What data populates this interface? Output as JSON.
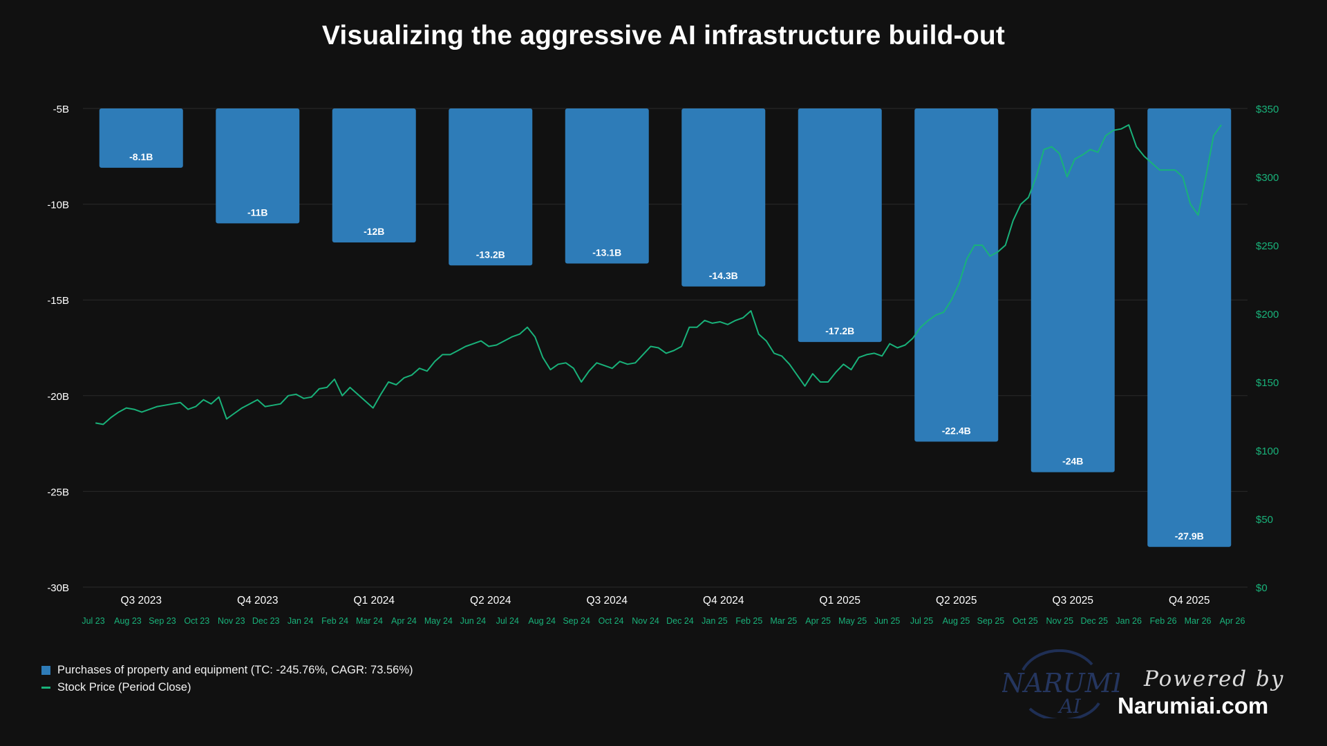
{
  "title": "Visualizing the aggressive AI infrastructure build-out",
  "legend": {
    "bar_label": "Purchases of property and equipment (TC: -245.76%, CAGR: 73.56%)",
    "line_label": "Stock Price (Period Close)"
  },
  "branding": {
    "logo_word": "NARUMI",
    "logo_sub": "AI",
    "powered_by": "Powered by",
    "site": "Narumiai.com"
  },
  "colors": {
    "background": "#111111",
    "bar": "#2e7cb8",
    "line": "#19b27a",
    "grid": "#2a2a2a",
    "axis_left_text": "#ffffff",
    "axis_right_text": "#19b27a"
  },
  "chart_data": {
    "type": "bar",
    "title": "Visualizing the aggressive AI infrastructure build-out",
    "categories": [
      "Q3 2023",
      "Q4 2023",
      "Q1 2024",
      "Q2 2024",
      "Q3 2024",
      "Q4 2024",
      "Q1 2025",
      "Q2 2025",
      "Q3 2025",
      "Q4 2025"
    ],
    "series": [
      {
        "name": "Purchases of property and equipment (TC: -245.76%, CAGR: 73.56%)",
        "type": "bar",
        "axis": "left",
        "values": [
          -8.1,
          -11,
          -12,
          -13.2,
          -13.1,
          -14.3,
          -17.2,
          -22.4,
          -24,
          -27.9
        ],
        "labels": [
          "-8.1B",
          "-11B",
          "-12B",
          "-13.2B",
          "-13.1B",
          "-14.3B",
          "-17.2B",
          "-22.4B",
          "-24B",
          "-27.9B"
        ]
      },
      {
        "name": "Stock Price (Period Close)",
        "type": "line",
        "axis": "right",
        "points": [
          [
            "2023-07-03",
            120
          ],
          [
            "2023-07-10",
            119
          ],
          [
            "2023-07-17",
            124
          ],
          [
            "2023-07-24",
            128
          ],
          [
            "2023-07-31",
            131
          ],
          [
            "2023-08-07",
            130
          ],
          [
            "2023-08-14",
            128
          ],
          [
            "2023-08-21",
            130
          ],
          [
            "2023-08-28",
            132
          ],
          [
            "2023-09-04",
            133
          ],
          [
            "2023-09-11",
            134
          ],
          [
            "2023-09-18",
            135
          ],
          [
            "2023-09-25",
            130
          ],
          [
            "2023-10-02",
            132
          ],
          [
            "2023-10-09",
            137
          ],
          [
            "2023-10-16",
            134
          ],
          [
            "2023-10-23",
            139
          ],
          [
            "2023-10-30",
            123
          ],
          [
            "2023-11-06",
            127
          ],
          [
            "2023-11-13",
            131
          ],
          [
            "2023-11-20",
            134
          ],
          [
            "2023-11-27",
            137
          ],
          [
            "2023-12-04",
            132
          ],
          [
            "2023-12-11",
            133
          ],
          [
            "2023-12-18",
            134
          ],
          [
            "2023-12-25",
            140
          ],
          [
            "2024-01-01",
            141
          ],
          [
            "2024-01-08",
            138
          ],
          [
            "2024-01-15",
            139
          ],
          [
            "2024-01-22",
            145
          ],
          [
            "2024-01-29",
            146
          ],
          [
            "2024-02-05",
            152
          ],
          [
            "2024-02-12",
            140
          ],
          [
            "2024-02-19",
            146
          ],
          [
            "2024-02-26",
            141
          ],
          [
            "2024-03-04",
            136
          ],
          [
            "2024-03-11",
            131
          ],
          [
            "2024-03-18",
            141
          ],
          [
            "2024-03-25",
            150
          ],
          [
            "2024-04-01",
            148
          ],
          [
            "2024-04-08",
            153
          ],
          [
            "2024-04-15",
            155
          ],
          [
            "2024-04-22",
            160
          ],
          [
            "2024-04-29",
            158
          ],
          [
            "2024-05-06",
            165
          ],
          [
            "2024-05-13",
            170
          ],
          [
            "2024-05-20",
            170
          ],
          [
            "2024-05-27",
            173
          ],
          [
            "2024-06-03",
            176
          ],
          [
            "2024-06-10",
            178
          ],
          [
            "2024-06-17",
            180
          ],
          [
            "2024-06-24",
            176
          ],
          [
            "2024-07-01",
            177
          ],
          [
            "2024-07-08",
            180
          ],
          [
            "2024-07-15",
            183
          ],
          [
            "2024-07-22",
            185
          ],
          [
            "2024-07-29",
            190
          ],
          [
            "2024-08-05",
            183
          ],
          [
            "2024-08-12",
            168
          ],
          [
            "2024-08-19",
            159
          ],
          [
            "2024-08-26",
            163
          ],
          [
            "2024-09-02",
            164
          ],
          [
            "2024-09-09",
            160
          ],
          [
            "2024-09-16",
            150
          ],
          [
            "2024-09-23",
            158
          ],
          [
            "2024-09-30",
            164
          ],
          [
            "2024-10-07",
            162
          ],
          [
            "2024-10-14",
            160
          ],
          [
            "2024-10-21",
            165
          ],
          [
            "2024-10-28",
            163
          ],
          [
            "2024-11-04",
            164
          ],
          [
            "2024-11-11",
            170
          ],
          [
            "2024-11-18",
            176
          ],
          [
            "2024-11-25",
            175
          ],
          [
            "2024-12-02",
            171
          ],
          [
            "2024-12-09",
            173
          ],
          [
            "2024-12-16",
            176
          ],
          [
            "2024-12-23",
            190
          ],
          [
            "2024-12-30",
            190
          ],
          [
            "2025-01-06",
            195
          ],
          [
            "2025-01-13",
            193
          ],
          [
            "2025-01-20",
            194
          ],
          [
            "2025-01-27",
            192
          ],
          [
            "2025-02-03",
            195
          ],
          [
            "2025-02-10",
            197
          ],
          [
            "2025-02-17",
            202
          ],
          [
            "2025-02-24",
            185
          ],
          [
            "2025-03-03",
            180
          ],
          [
            "2025-03-10",
            171
          ],
          [
            "2025-03-17",
            169
          ],
          [
            "2025-03-24",
            163
          ],
          [
            "2025-03-31",
            155
          ],
          [
            "2025-04-07",
            147
          ],
          [
            "2025-04-14",
            156
          ],
          [
            "2025-04-21",
            150
          ],
          [
            "2025-04-28",
            150
          ],
          [
            "2025-05-05",
            157
          ],
          [
            "2025-05-12",
            163
          ],
          [
            "2025-05-19",
            159
          ],
          [
            "2025-05-26",
            168
          ],
          [
            "2025-06-02",
            170
          ],
          [
            "2025-06-09",
            171
          ],
          [
            "2025-06-16",
            169
          ],
          [
            "2025-06-23",
            178
          ],
          [
            "2025-06-30",
            175
          ],
          [
            "2025-07-07",
            177
          ],
          [
            "2025-07-14",
            182
          ],
          [
            "2025-07-21",
            190
          ],
          [
            "2025-07-28",
            195
          ],
          [
            "2025-08-04",
            199
          ],
          [
            "2025-08-11",
            201
          ],
          [
            "2025-08-18",
            210
          ],
          [
            "2025-08-25",
            222
          ],
          [
            "2025-09-01",
            240
          ],
          [
            "2025-09-08",
            250
          ],
          [
            "2025-09-15",
            250
          ],
          [
            "2025-09-22",
            242
          ],
          [
            "2025-09-29",
            245
          ],
          [
            "2025-10-06",
            250
          ],
          [
            "2025-10-13",
            268
          ],
          [
            "2025-10-20",
            280
          ],
          [
            "2025-10-27",
            285
          ],
          [
            "2025-11-03",
            300
          ],
          [
            "2025-11-10",
            320
          ],
          [
            "2025-11-17",
            322
          ],
          [
            "2025-11-24",
            317
          ],
          [
            "2025-12-01",
            300
          ],
          [
            "2025-12-08",
            313
          ],
          [
            "2025-12-15",
            316
          ],
          [
            "2025-12-22",
            320
          ],
          [
            "2025-12-29",
            318
          ],
          [
            "2026-01-05",
            330
          ],
          [
            "2026-01-12",
            334
          ],
          [
            "2026-01-19",
            335
          ],
          [
            "2026-01-26",
            338
          ],
          [
            "2026-02-02",
            322
          ],
          [
            "2026-02-09",
            315
          ],
          [
            "2026-02-16",
            310
          ],
          [
            "2026-02-23",
            305
          ],
          [
            "2026-03-02",
            305
          ],
          [
            "2026-03-09",
            305
          ],
          [
            "2026-03-16",
            300
          ],
          [
            "2026-03-23",
            280
          ],
          [
            "2026-03-30",
            272
          ],
          [
            "2026-04-06",
            300
          ],
          [
            "2026-04-13",
            330
          ],
          [
            "2026-04-20",
            338
          ]
        ]
      }
    ],
    "y_left": {
      "ylim": [
        -30,
        -5
      ],
      "ticks": [
        -5,
        -10,
        -15,
        -20,
        -25,
        -30
      ],
      "tick_labels": [
        "-5B",
        "-10B",
        "-15B",
        "-20B",
        "-25B",
        "-30B"
      ]
    },
    "y_right": {
      "ylim": [
        0,
        350
      ],
      "ticks": [
        0,
        50,
        100,
        150,
        200,
        250,
        300,
        350
      ],
      "tick_labels": [
        "$0",
        "$50",
        "$100",
        "$150",
        "$200",
        "$250",
        "$300",
        "$350"
      ]
    },
    "x_months": {
      "range": [
        "2023-07-01",
        "2026-04-30"
      ],
      "tick_labels": [
        "Jul 23",
        "Aug 23",
        "Sep 23",
        "Oct 23",
        "Nov 23",
        "Dec 23",
        "Jan 24",
        "Feb 24",
        "Mar 24",
        "Apr 24",
        "May 24",
        "Jun 24",
        "Jul 24",
        "Aug 24",
        "Sep 24",
        "Oct 24",
        "Nov 24",
        "Dec 24",
        "Jan 25",
        "Feb 25",
        "Mar 25",
        "Apr 25",
        "May 25",
        "Jun 25",
        "Jul 25",
        "Aug 25",
        "Sep 25",
        "Oct 25",
        "Nov 25",
        "Dec 25",
        "Jan 26",
        "Feb 26",
        "Mar 26",
        "Apr 26"
      ]
    },
    "grid": true,
    "legend_position": "bottom-left"
  }
}
